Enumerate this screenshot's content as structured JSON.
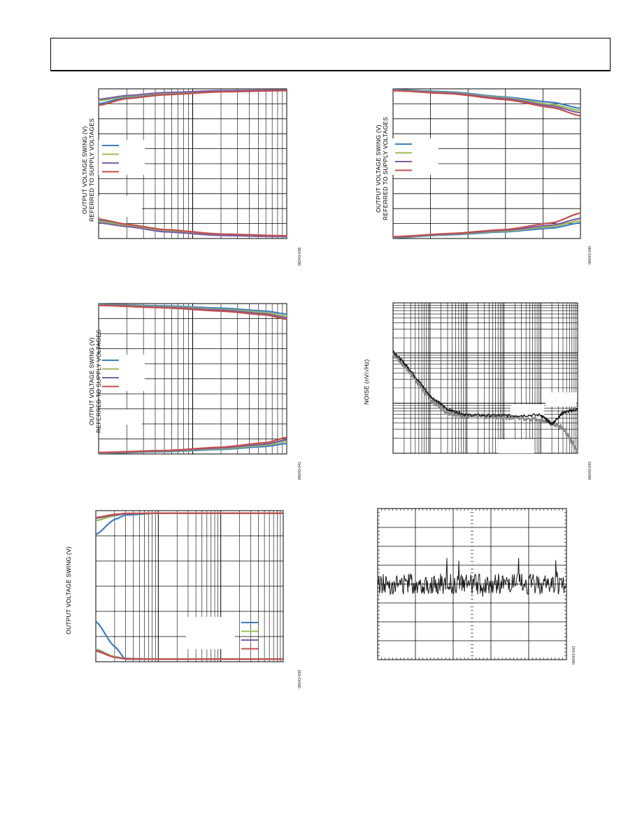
{
  "figures": [
    {
      "id": "fig-a",
      "ylabel_1": "OUTPUT VOLTAGE SWING (V)",
      "ylabel_2": "REFERRED TO SUPPLY VOLTAGES",
      "figure_id": "06043-038"
    },
    {
      "id": "fig-b",
      "ylabel_1": "OUTPUT VOLTAGE SWING (V)",
      "ylabel_2": "REFERRED TO SUPPLY VOLTAGES",
      "figure_id": "06043-040"
    },
    {
      "id": "fig-c",
      "ylabel_1": "OUTPUT VOLTAGE SWING (V)",
      "ylabel_2": "REFERRED TO SUPPLY VOLTAGES",
      "figure_id": "06043-041"
    },
    {
      "id": "fig-d",
      "ylabel_1": "NOISE (nV/√Hz)",
      "ylabel_2": "",
      "figure_id": "06043-042"
    },
    {
      "id": "fig-e",
      "ylabel_1": "OUTPUT VOLTAGE SWING (V)",
      "ylabel_2": "",
      "figure_id": "06043-039"
    },
    {
      "id": "fig-f",
      "ylabel_1": "",
      "ylabel_2": "",
      "figure_id": "06043-043"
    }
  ],
  "colors": {
    "blue": "#3d7ebf",
    "green": "#9bbb59",
    "purple": "#7e5ea6",
    "red": "#c0504d",
    "grid": "#000000",
    "noise_gray": "#8c8c8c",
    "noise_black": "#1a1a1a"
  },
  "chart_data": [
    {
      "id": "fig-a",
      "type": "line",
      "xscale": "log",
      "xlim": [
        1,
        100
      ],
      "ylim": [
        0,
        10
      ],
      "legend": "left-middle",
      "legend_entries": 4,
      "grid": true,
      "series_colors": [
        "blue",
        "green",
        "purple",
        "red"
      ],
      "series": [
        {
          "values_high": [
            [
              1,
              9.0
            ],
            [
              2,
              9.45
            ],
            [
              5,
              9.7
            ],
            [
              20,
              9.85
            ],
            [
              100,
              9.9
            ]
          ],
          "values_low": [
            [
              1,
              1.2
            ],
            [
              2,
              0.9
            ],
            [
              5,
              0.55
            ],
            [
              20,
              0.25
            ],
            [
              100,
              0.15
            ]
          ]
        },
        {
          "values_high": [
            [
              1,
              9.2
            ],
            [
              2,
              9.5
            ],
            [
              5,
              9.72
            ],
            [
              20,
              9.85
            ],
            [
              100,
              9.9
            ]
          ],
          "values_low": [
            [
              1,
              1.15
            ],
            [
              2,
              0.85
            ],
            [
              5,
              0.5
            ],
            [
              20,
              0.22
            ],
            [
              100,
              0.15
            ]
          ]
        },
        {
          "values_high": [
            [
              1,
              9.3
            ],
            [
              2,
              9.55
            ],
            [
              5,
              9.75
            ],
            [
              20,
              9.88
            ],
            [
              100,
              9.92
            ]
          ],
          "values_low": [
            [
              1,
              1.05
            ],
            [
              2,
              0.8
            ],
            [
              5,
              0.45
            ],
            [
              20,
              0.2
            ],
            [
              100,
              0.12
            ]
          ]
        },
        {
          "values_high": [
            [
              1,
              8.9
            ],
            [
              2,
              9.35
            ],
            [
              5,
              9.6
            ],
            [
              20,
              9.8
            ],
            [
              100,
              9.88
            ]
          ],
          "values_low": [
            [
              1,
              1.3
            ],
            [
              2,
              0.95
            ],
            [
              5,
              0.6
            ],
            [
              20,
              0.3
            ],
            [
              100,
              0.18
            ]
          ]
        }
      ]
    },
    {
      "id": "fig-b",
      "type": "line",
      "xscale": "linear",
      "xlim": [
        0,
        100
      ],
      "ylim": [
        0,
        10
      ],
      "legend": "left-middle",
      "legend_entries": 4,
      "grid": true,
      "series_colors": [
        "blue",
        "green",
        "purple",
        "red"
      ],
      "series": [
        {
          "values_high": [
            [
              0,
              9.95
            ],
            [
              30,
              9.8
            ],
            [
              60,
              9.45
            ],
            [
              85,
              9.1
            ],
            [
              100,
              8.7
            ]
          ],
          "values_low": [
            [
              0,
              0.05
            ],
            [
              30,
              0.25
            ],
            [
              60,
              0.45
            ],
            [
              85,
              0.7
            ],
            [
              100,
              1.05
            ]
          ]
        },
        {
          "values_high": [
            [
              0,
              9.92
            ],
            [
              30,
              9.75
            ],
            [
              60,
              9.4
            ],
            [
              85,
              8.95
            ],
            [
              100,
              8.55
            ]
          ],
          "values_low": [
            [
              0,
              0.08
            ],
            [
              30,
              0.28
            ],
            [
              60,
              0.5
            ],
            [
              85,
              0.8
            ],
            [
              100,
              1.2
            ]
          ]
        },
        {
          "values_high": [
            [
              0,
              9.9
            ],
            [
              30,
              9.72
            ],
            [
              60,
              9.35
            ],
            [
              85,
              8.85
            ],
            [
              100,
              8.4
            ]
          ],
          "values_low": [
            [
              0,
              0.1
            ],
            [
              30,
              0.3
            ],
            [
              60,
              0.55
            ],
            [
              85,
              0.9
            ],
            [
              100,
              1.35
            ]
          ]
        },
        {
          "values_high": [
            [
              0,
              9.88
            ],
            [
              30,
              9.68
            ],
            [
              60,
              9.28
            ],
            [
              85,
              8.75
            ],
            [
              100,
              8.2
            ]
          ],
          "values_low": [
            [
              0,
              0.12
            ],
            [
              30,
              0.33
            ],
            [
              60,
              0.6
            ],
            [
              85,
              1.05
            ],
            [
              100,
              1.7
            ]
          ]
        }
      ]
    },
    {
      "id": "fig-c",
      "type": "line",
      "xscale": "log",
      "xlim": [
        1,
        100
      ],
      "ylim": [
        0,
        10
      ],
      "legend": "left-middle",
      "legend_entries": 4,
      "grid": true,
      "series_colors": [
        "blue",
        "green",
        "purple",
        "red"
      ],
      "series": [
        {
          "values_high": [
            [
              1,
              9.95
            ],
            [
              5,
              9.85
            ],
            [
              20,
              9.7
            ],
            [
              60,
              9.5
            ],
            [
              100,
              9.3
            ]
          ],
          "values_low": [
            [
              1,
              0.05
            ],
            [
              5,
              0.15
            ],
            [
              20,
              0.3
            ],
            [
              60,
              0.5
            ],
            [
              100,
              0.7
            ]
          ]
        },
        {
          "values_high": [
            [
              1,
              9.92
            ],
            [
              5,
              9.8
            ],
            [
              20,
              9.62
            ],
            [
              60,
              9.4
            ],
            [
              100,
              9.15
            ]
          ],
          "values_low": [
            [
              1,
              0.06
            ],
            [
              5,
              0.18
            ],
            [
              20,
              0.35
            ],
            [
              60,
              0.58
            ],
            [
              100,
              0.85
            ]
          ]
        },
        {
          "values_high": [
            [
              1,
              9.9
            ],
            [
              5,
              9.76
            ],
            [
              20,
              9.57
            ],
            [
              60,
              9.32
            ],
            [
              100,
              9.05
            ]
          ],
          "values_low": [
            [
              1,
              0.08
            ],
            [
              5,
              0.2
            ],
            [
              20,
              0.4
            ],
            [
              60,
              0.65
            ],
            [
              100,
              0.95
            ]
          ]
        },
        {
          "values_high": [
            [
              1,
              9.88
            ],
            [
              5,
              9.72
            ],
            [
              20,
              9.5
            ],
            [
              60,
              9.25
            ],
            [
              100,
              8.95
            ]
          ],
          "values_low": [
            [
              1,
              0.1
            ],
            [
              5,
              0.23
            ],
            [
              20,
              0.45
            ],
            [
              60,
              0.75
            ],
            [
              100,
              1.1
            ]
          ]
        }
      ]
    },
    {
      "id": "fig-d",
      "type": "line",
      "xscale": "log",
      "yscale": "log",
      "xlim": [
        1,
        100000
      ],
      "ylim": [
        1,
        1000
      ],
      "grid": true,
      "series_colors": [
        "noise_gray",
        "noise_black"
      ],
      "series": [
        {
          "values": [
            [
              1,
              100
            ],
            [
              3,
              40
            ],
            [
              10,
              12
            ],
            [
              30,
              6.5
            ],
            [
              100,
              5.5
            ],
            [
              1000,
              5.3
            ],
            [
              10000,
              4.8
            ],
            [
              40000,
              3.2
            ],
            [
              100000,
              1.1
            ]
          ]
        },
        {
          "values": [
            [
              1,
              110
            ],
            [
              3,
              45
            ],
            [
              10,
              14
            ],
            [
              30,
              7.5
            ],
            [
              100,
              5.8
            ],
            [
              1000,
              5.6
            ],
            [
              10000,
              5.8
            ],
            [
              20000,
              3.8
            ],
            [
              40000,
              6.5
            ],
            [
              100000,
              7.5
            ]
          ]
        }
      ]
    },
    {
      "id": "fig-e",
      "type": "line",
      "xscale": "log",
      "xlim": [
        1,
        1000
      ],
      "ylim": [
        -6,
        6
      ],
      "legend": "bottom-right",
      "legend_entries": 4,
      "grid": true,
      "series_colors": [
        "blue",
        "green",
        "purple",
        "red"
      ],
      "series": [
        {
          "values_high": [
            [
              1,
              4.1
            ],
            [
              2,
              5.3
            ],
            [
              3,
              5.65
            ],
            [
              10,
              5.8
            ],
            [
              1000,
              5.8
            ]
          ],
          "values_low": [
            [
              1,
              -2.8
            ],
            [
              2,
              -4.8
            ],
            [
              3,
              -5.8
            ],
            [
              10,
              -5.8
            ],
            [
              1000,
              -5.8
            ]
          ]
        },
        {
          "values_high": [
            [
              1,
              5.2
            ],
            [
              2,
              5.6
            ],
            [
              3,
              5.75
            ],
            [
              10,
              5.8
            ],
            [
              1000,
              5.8
            ]
          ],
          "values_low": [
            [
              1,
              -5.0
            ],
            [
              2,
              -5.6
            ],
            [
              3,
              -5.75
            ],
            [
              10,
              -5.8
            ],
            [
              1000,
              -5.8
            ]
          ]
        },
        {
          "values_high": [
            [
              1,
              5.4
            ],
            [
              2,
              5.65
            ],
            [
              3,
              5.75
            ],
            [
              10,
              5.8
            ],
            [
              1000,
              5.8
            ]
          ],
          "values_low": [
            [
              1,
              -5.1
            ],
            [
              2,
              -5.65
            ],
            [
              3,
              -5.75
            ],
            [
              10,
              -5.8
            ],
            [
              1000,
              -5.8
            ]
          ]
        },
        {
          "values_high": [
            [
              1,
              5.45
            ],
            [
              2,
              5.7
            ],
            [
              3,
              5.78
            ],
            [
              10,
              5.8
            ],
            [
              1000,
              5.8
            ]
          ],
          "values_low": [
            [
              1,
              -5.15
            ],
            [
              2,
              -5.65
            ],
            [
              3,
              -5.78
            ],
            [
              10,
              -5.8
            ],
            [
              1000,
              -5.8
            ]
          ]
        }
      ]
    },
    {
      "id": "fig-f",
      "type": "line",
      "xscale": "linear",
      "xlim": [
        0,
        10
      ],
      "ylim": [
        -4,
        4
      ],
      "grid": true,
      "noise_trace": true,
      "series_colors": [
        "noise_black"
      ],
      "series": [
        {
          "baseline": 0.0,
          "amplitude": 0.55,
          "samples": 300
        }
      ]
    }
  ]
}
